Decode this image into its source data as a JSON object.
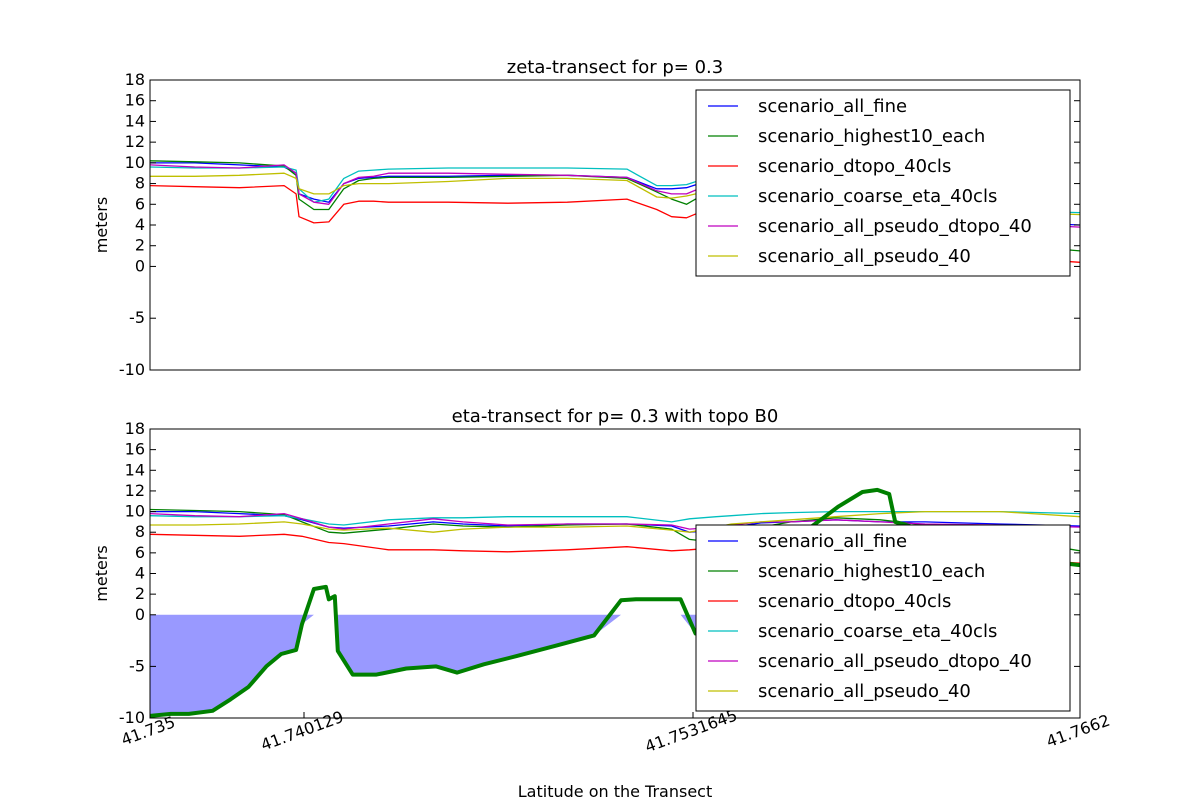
{
  "chart_data": [
    {
      "type": "line",
      "title": "zeta-transect for p= 0.3",
      "xlabel": "",
      "ylabel": "meters",
      "xlim": [
        41.735,
        41.7662
      ],
      "ylim": [
        -10,
        18
      ],
      "yticks": [
        -10,
        -5,
        0,
        2,
        4,
        6,
        8,
        10,
        12,
        14,
        16,
        18
      ],
      "xticks": [],
      "legend_position": "upper-right",
      "grid": false,
      "legend": [
        "scenario_all_fine",
        "scenario_highest10_each",
        "scenario_dtopo_40cls",
        "scenario_coarse_eta_40cls",
        "scenario_all_pseudo_dtopo_40",
        "scenario_all_pseudo_40"
      ],
      "series": [
        {
          "name": "scenario_all_fine",
          "color": "#0000ff",
          "x": [
            41.735,
            41.7365,
            41.738,
            41.7395,
            41.7399,
            41.74,
            41.7405,
            41.741,
            41.7415,
            41.742,
            41.7425,
            41.743,
            41.745,
            41.747,
            41.749,
            41.751,
            41.752,
            41.7525,
            41.753,
            41.7545,
            41.755,
            41.7552,
            41.7555,
            41.756,
            41.758,
            41.762,
            41.7662
          ],
          "y": [
            10.0,
            10.0,
            9.8,
            9.6,
            9.0,
            7.0,
            6.5,
            6.2,
            8.0,
            8.5,
            8.6,
            8.7,
            8.7,
            8.8,
            8.8,
            8.6,
            7.5,
            7.5,
            7.6,
            9.0,
            7.5,
            7.0,
            6.4,
            5.8,
            5.0,
            4.5,
            4.0
          ]
        },
        {
          "name": "scenario_highest10_each",
          "color": "#008000",
          "x": [
            41.735,
            41.7365,
            41.738,
            41.7395,
            41.7399,
            41.74,
            41.7405,
            41.741,
            41.7415,
            41.742,
            41.7425,
            41.743,
            41.745,
            41.747,
            41.749,
            41.751,
            41.752,
            41.7525,
            41.753,
            41.7545,
            41.755,
            41.7552,
            41.7555,
            41.756,
            41.758,
            41.762,
            41.7662
          ],
          "y": [
            10.2,
            10.1,
            10.0,
            9.7,
            8.8,
            6.5,
            5.5,
            5.5,
            7.5,
            8.3,
            8.5,
            8.6,
            8.6,
            8.7,
            8.8,
            8.5,
            7.2,
            6.5,
            6.0,
            8.5,
            7.2,
            6.5,
            5.8,
            5.0,
            4.0,
            2.5,
            1.5
          ]
        },
        {
          "name": "scenario_dtopo_40cls",
          "color": "#ff0000",
          "x": [
            41.735,
            41.7365,
            41.738,
            41.7395,
            41.7399,
            41.74,
            41.7405,
            41.741,
            41.7415,
            41.742,
            41.7425,
            41.743,
            41.745,
            41.747,
            41.749,
            41.751,
            41.752,
            41.7525,
            41.753,
            41.7545,
            41.755,
            41.7552,
            41.7555,
            41.756,
            41.758,
            41.762,
            41.7662
          ],
          "y": [
            7.8,
            7.7,
            7.6,
            7.8,
            7.0,
            4.8,
            4.2,
            4.3,
            6.0,
            6.3,
            6.3,
            6.2,
            6.2,
            6.1,
            6.2,
            6.5,
            5.5,
            4.8,
            4.7,
            6.5,
            5.0,
            4.5,
            4.0,
            3.5,
            2.5,
            1.2,
            0.4
          ]
        },
        {
          "name": "scenario_coarse_eta_40cls",
          "color": "#00bfbf",
          "x": [
            41.735,
            41.7365,
            41.738,
            41.7395,
            41.7399,
            41.74,
            41.7405,
            41.741,
            41.7415,
            41.742,
            41.7425,
            41.743,
            41.745,
            41.747,
            41.749,
            41.751,
            41.752,
            41.7525,
            41.753,
            41.7545,
            41.755,
            41.7552,
            41.7555,
            41.756,
            41.758,
            41.762,
            41.7662
          ],
          "y": [
            9.6,
            9.5,
            9.5,
            9.6,
            9.3,
            7.5,
            6.2,
            6.5,
            8.5,
            9.2,
            9.3,
            9.4,
            9.5,
            9.5,
            9.5,
            9.4,
            7.8,
            7.8,
            7.9,
            9.3,
            8.0,
            7.5,
            7.0,
            6.5,
            6.0,
            5.5,
            5.2
          ]
        },
        {
          "name": "scenario_all_pseudo_dtopo_40",
          "color": "#bf00bf",
          "x": [
            41.735,
            41.7365,
            41.738,
            41.7395,
            41.7399,
            41.74,
            41.7405,
            41.741,
            41.7415,
            41.742,
            41.7425,
            41.743,
            41.745,
            41.747,
            41.749,
            41.751,
            41.752,
            41.7525,
            41.753,
            41.7545,
            41.755,
            41.7552,
            41.7555,
            41.756,
            41.758,
            41.762,
            41.7662
          ],
          "y": [
            9.8,
            9.6,
            9.5,
            9.8,
            9.0,
            7.0,
            6.2,
            6.0,
            8.0,
            8.6,
            8.7,
            9.0,
            9.0,
            8.9,
            8.8,
            8.6,
            7.3,
            7.0,
            7.0,
            8.8,
            7.5,
            7.0,
            6.5,
            6.0,
            5.2,
            4.4,
            3.8
          ]
        },
        {
          "name": "scenario_all_pseudo_40",
          "color": "#bfbf00",
          "x": [
            41.735,
            41.7365,
            41.738,
            41.7395,
            41.7399,
            41.74,
            41.7405,
            41.741,
            41.7415,
            41.742,
            41.7425,
            41.743,
            41.745,
            41.747,
            41.749,
            41.751,
            41.752,
            41.7525,
            41.753,
            41.7545,
            41.755,
            41.7552,
            41.7555,
            41.756,
            41.758,
            41.762,
            41.7662
          ],
          "y": [
            8.7,
            8.7,
            8.8,
            9.0,
            8.5,
            7.5,
            7.0,
            7.0,
            7.8,
            8.0,
            8.0,
            8.0,
            8.2,
            8.5,
            8.5,
            8.3,
            6.7,
            6.6,
            6.8,
            7.8,
            7.0,
            6.8,
            6.5,
            6.3,
            6.0,
            5.5,
            5.0
          ]
        }
      ]
    },
    {
      "type": "line",
      "title": "eta-transect for p= 0.3 with topo B0",
      "xlabel": "Latitude on the Transect",
      "ylabel": "meters",
      "xlim": [
        41.735,
        41.7662
      ],
      "ylim": [
        -10,
        18
      ],
      "yticks": [
        -10,
        -5,
        0,
        2,
        4,
        6,
        8,
        10,
        12,
        14,
        16,
        18
      ],
      "xticks": [
        "41.735",
        "41.740129",
        "41.7531645",
        "41.7662"
      ],
      "legend_position": "lower-right",
      "grid": false,
      "legend": [
        "scenario_all_fine",
        "scenario_highest10_each",
        "scenario_dtopo_40cls",
        "scenario_coarse_eta_40cls",
        "scenario_all_pseudo_dtopo_40",
        "scenario_all_pseudo_40"
      ],
      "series": [
        {
          "name": "scenario_all_fine",
          "color": "#0000ff",
          "x": [
            41.735,
            41.7365,
            41.738,
            41.7395,
            41.7401,
            41.741,
            41.7415,
            41.743,
            41.7445,
            41.7455,
            41.747,
            41.749,
            41.751,
            41.7525,
            41.7531,
            41.754,
            41.7545,
            41.7555,
            41.7565,
            41.758,
            41.7595,
            41.761,
            41.7635,
            41.7662
          ],
          "y": [
            10.0,
            10.0,
            9.8,
            9.6,
            9.2,
            8.5,
            8.4,
            8.6,
            9.0,
            8.8,
            8.6,
            8.8,
            8.8,
            8.6,
            8.0,
            8.2,
            8.5,
            8.9,
            9.0,
            9.2,
            9.0,
            9.0,
            8.8,
            8.6
          ]
        },
        {
          "name": "scenario_highest10_each",
          "color": "#008000",
          "x": [
            41.735,
            41.7365,
            41.738,
            41.7395,
            41.7401,
            41.741,
            41.7415,
            41.743,
            41.7445,
            41.7455,
            41.747,
            41.749,
            41.751,
            41.7525,
            41.7531,
            41.754,
            41.7545,
            41.7555,
            41.7565,
            41.758,
            41.7595,
            41.761,
            41.7635,
            41.7662
          ],
          "y": [
            10.2,
            10.1,
            10.0,
            9.7,
            9.0,
            8.0,
            7.9,
            8.3,
            8.8,
            8.6,
            8.5,
            8.7,
            8.8,
            8.3,
            7.3,
            7.0,
            7.5,
            8.5,
            9.0,
            9.4,
            9.2,
            8.7,
            7.5,
            6.2
          ]
        },
        {
          "name": "scenario_dtopo_40cls",
          "color": "#ff0000",
          "x": [
            41.735,
            41.7365,
            41.738,
            41.7395,
            41.7401,
            41.741,
            41.7415,
            41.743,
            41.7445,
            41.7455,
            41.747,
            41.749,
            41.751,
            41.7525,
            41.7531,
            41.754,
            41.7545,
            41.7555,
            41.7565,
            41.758,
            41.7595,
            41.761,
            41.7635,
            41.7662
          ],
          "y": [
            7.8,
            7.7,
            7.6,
            7.8,
            7.6,
            7.0,
            6.9,
            6.3,
            6.3,
            6.2,
            6.1,
            6.3,
            6.6,
            6.2,
            6.3,
            6.5,
            6.6,
            6.8,
            7.0,
            7.0,
            6.5,
            6.0,
            5.5,
            5.0
          ]
        },
        {
          "name": "scenario_coarse_eta_40cls",
          "color": "#00bfbf",
          "x": [
            41.735,
            41.7365,
            41.738,
            41.7395,
            41.7401,
            41.741,
            41.7415,
            41.743,
            41.7445,
            41.7455,
            41.747,
            41.749,
            41.751,
            41.7525,
            41.7531,
            41.754,
            41.7545,
            41.7555,
            41.7565,
            41.758,
            41.7595,
            41.761,
            41.7635,
            41.7662
          ],
          "y": [
            9.6,
            9.5,
            9.5,
            9.6,
            9.3,
            8.8,
            8.7,
            9.2,
            9.4,
            9.4,
            9.5,
            9.5,
            9.5,
            9.0,
            9.3,
            9.5,
            9.6,
            9.8,
            9.9,
            10.0,
            10.0,
            10.0,
            10.0,
            9.8
          ]
        },
        {
          "name": "scenario_all_pseudo_dtopo_40",
          "color": "#bf00bf",
          "x": [
            41.735,
            41.7365,
            41.738,
            41.7395,
            41.7401,
            41.741,
            41.7415,
            41.743,
            41.7445,
            41.7455,
            41.747,
            41.749,
            41.751,
            41.7525,
            41.7531,
            41.754,
            41.7545,
            41.7555,
            41.7565,
            41.758,
            41.7595,
            41.761,
            41.7635,
            41.7662
          ],
          "y": [
            9.8,
            9.6,
            9.5,
            9.8,
            9.3,
            8.5,
            8.3,
            8.8,
            9.3,
            9.0,
            8.7,
            8.8,
            8.8,
            8.7,
            8.3,
            8.5,
            8.7,
            9.0,
            9.0,
            9.2,
            9.0,
            8.8,
            8.7,
            8.5
          ]
        },
        {
          "name": "scenario_all_pseudo_40",
          "color": "#bfbf00",
          "x": [
            41.735,
            41.7365,
            41.738,
            41.7395,
            41.7401,
            41.741,
            41.7415,
            41.743,
            41.7445,
            41.7455,
            41.747,
            41.749,
            41.751,
            41.7525,
            41.7531,
            41.754,
            41.7545,
            41.7555,
            41.7565,
            41.758,
            41.7595,
            41.761,
            41.7635,
            41.7662
          ],
          "y": [
            8.7,
            8.7,
            8.8,
            9.0,
            8.8,
            8.3,
            8.2,
            8.4,
            8.0,
            8.3,
            8.5,
            8.5,
            8.6,
            8.2,
            8.0,
            8.5,
            8.8,
            9.0,
            9.2,
            9.5,
            9.8,
            10.0,
            10.0,
            9.5
          ]
        },
        {
          "role": "topo B0",
          "color": "#008000",
          "width": 4,
          "x": [
            41.735,
            41.7357,
            41.7363,
            41.7371,
            41.7377,
            41.7383,
            41.7389,
            41.7394,
            41.7399,
            41.7401,
            41.7405,
            41.7409,
            41.741,
            41.7412,
            41.7413,
            41.7418,
            41.7426,
            41.7436,
            41.7446,
            41.7453,
            41.7462,
            41.7473,
            41.7486,
            41.7499,
            41.7508,
            41.7513,
            41.752,
            41.7528,
            41.7533,
            41.7539,
            41.7545,
            41.7548,
            41.7554,
            41.756,
            41.7567,
            41.7575,
            41.7581,
            41.7589,
            41.7594,
            41.7598,
            41.76,
            41.7606,
            41.7613,
            41.7621,
            41.7629,
            41.7641,
            41.7662
          ],
          "y": [
            -9.8,
            -9.6,
            -9.6,
            -9.3,
            -8.2,
            -7.0,
            -5.0,
            -3.8,
            -3.4,
            -0.9,
            2.5,
            2.7,
            1.5,
            1.8,
            -3.5,
            -5.8,
            -5.8,
            -5.2,
            -5.0,
            -5.6,
            -4.8,
            -4.0,
            -3.0,
            -2.0,
            1.4,
            1.5,
            1.5,
            1.5,
            -1.8,
            1.5,
            0.0,
            2.0,
            4.0,
            6.0,
            7.5,
            9.2,
            10.5,
            11.9,
            12.1,
            11.7,
            9.0,
            8.5,
            8.3,
            7.5,
            6.8,
            5.5,
            4.8
          ]
        }
      ]
    }
  ]
}
